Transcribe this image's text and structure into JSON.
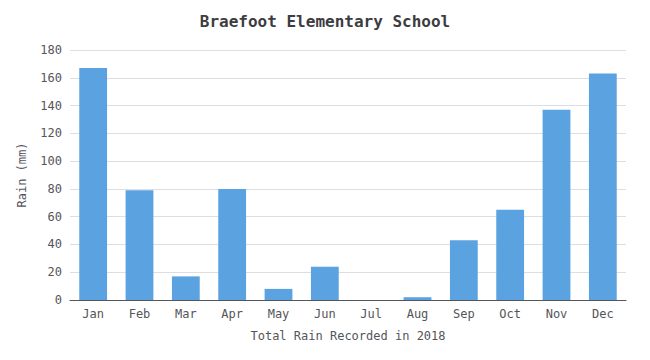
{
  "chart_data": {
    "type": "bar",
    "title": "Braefoot Elementary School",
    "xlabel": "Total Rain Recorded in 2018",
    "ylabel": "Rain (mm)",
    "categories": [
      "Jan",
      "Feb",
      "Mar",
      "Apr",
      "May",
      "Jun",
      "Jul",
      "Aug",
      "Sep",
      "Oct",
      "Nov",
      "Dec"
    ],
    "values": [
      167,
      79,
      17,
      80,
      8,
      24,
      0,
      2,
      43,
      65,
      137,
      163
    ],
    "color": "#5ba3e0",
    "ylim": [
      0,
      180
    ],
    "yticks": [
      0,
      20,
      40,
      60,
      80,
      100,
      120,
      140,
      160,
      180
    ],
    "grid": true
  }
}
